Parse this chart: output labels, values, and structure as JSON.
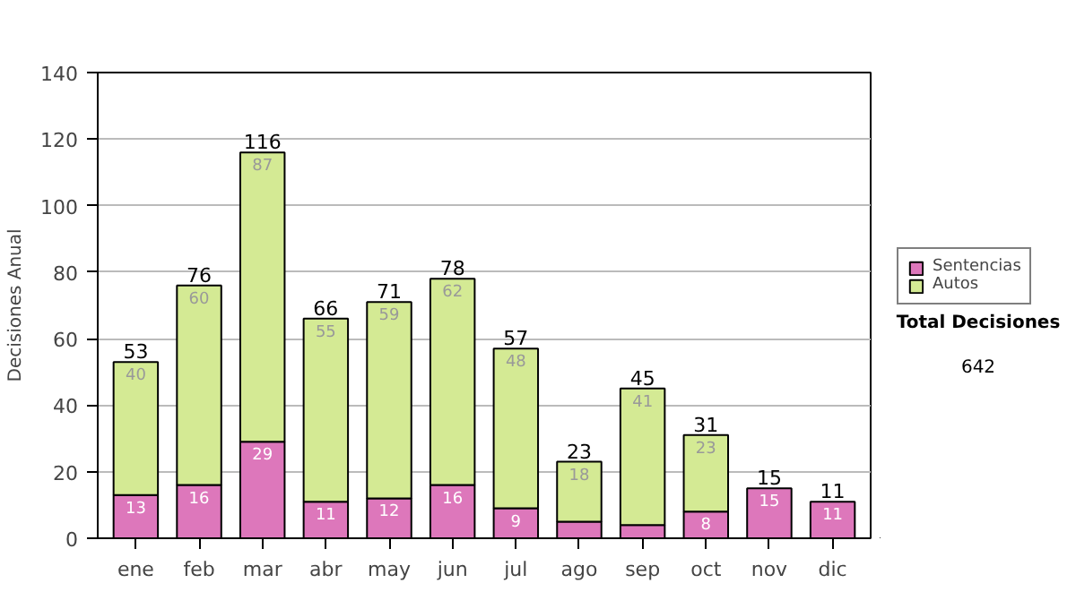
{
  "chart_data": {
    "type": "bar",
    "stacked": true,
    "ylabel": "Decisiones Anual",
    "categories": [
      "ene",
      "feb",
      "mar",
      "abr",
      "may",
      "jun",
      "jul",
      "ago",
      "sep",
      "oct",
      "nov",
      "dic"
    ],
    "series": [
      {
        "name": "Sentencias",
        "color": "#dd77bb",
        "values": [
          13,
          16,
          29,
          11,
          12,
          16,
          9,
          5,
          4,
          8,
          15,
          11
        ],
        "value_labels": [
          "13",
          "16",
          "29",
          "11",
          "12",
          "16",
          "9",
          null,
          null,
          "8",
          "15",
          "11"
        ]
      },
      {
        "name": "Autos",
        "color": "#d4ea94",
        "values": [
          40,
          60,
          87,
          55,
          59,
          62,
          48,
          18,
          41,
          23,
          null,
          null
        ],
        "value_labels": [
          "40",
          "60",
          "87",
          "55",
          "59",
          "62",
          "48",
          "18",
          "41",
          "23",
          null,
          null
        ]
      }
    ],
    "totals": [
      "53",
      "76",
      "116",
      "66",
      "71",
      "78",
      "57",
      "23",
      "45",
      "31",
      "15",
      "11"
    ],
    "ylim": [
      0,
      140
    ],
    "yticks": [
      0,
      20,
      40,
      60,
      80,
      100,
      120,
      140
    ],
    "grid": "y",
    "legend": "right",
    "annotations": [
      "Total Decisiones",
      "642"
    ]
  }
}
